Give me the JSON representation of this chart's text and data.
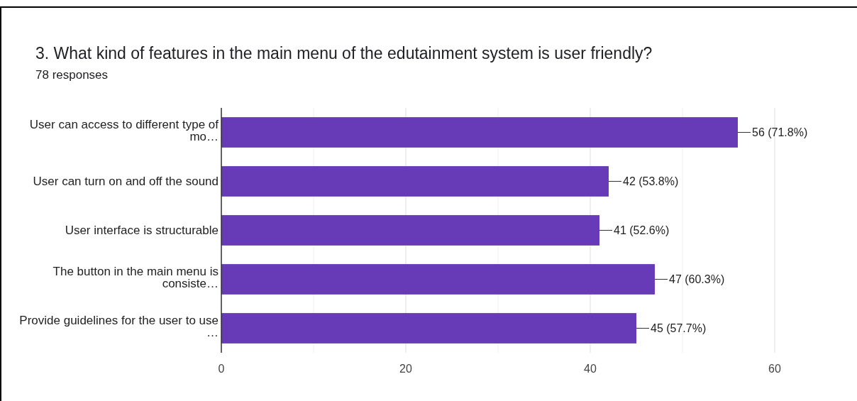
{
  "chart_data": {
    "type": "bar",
    "orientation": "horizontal",
    "title": "3. What kind of features in the main menu of the edutainment system is user friendly?",
    "subtitle": "78 responses",
    "categories": [
      "User can access to different type of mo…",
      "User can turn on and off the sound",
      "User interface is structurable",
      "The button in the main menu is consiste…",
      "Provide guidelines for the user to use …"
    ],
    "values": [
      56,
      42,
      41,
      47,
      45
    ],
    "value_labels": [
      "56 (71.8%)",
      "42 (53.8%)",
      "41 (52.6%)",
      "47 (60.3%)",
      "45 (57.7%)"
    ],
    "color": "#673ab7",
    "xlim": [
      0,
      60
    ],
    "xticks": [
      0,
      {
        "value": 10,
        "label": null
      },
      20,
      {
        "value": 30,
        "label": null
      },
      40,
      {
        "value": 50,
        "label": null
      },
      60
    ],
    "grid": "x"
  }
}
